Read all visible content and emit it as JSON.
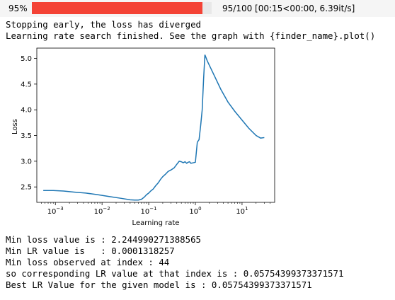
{
  "progress": {
    "percent_label": "95%",
    "fraction": 0.95,
    "stats": "95/100 [00:15<00:00, 6.39it/s]",
    "bar_color": "#f44336"
  },
  "log_lines": [
    "Stopping early, the loss has diverged",
    "Learning rate search finished. See the graph with {finder_name}.plot()"
  ],
  "chart_data": {
    "type": "line",
    "xlabel": "Learning rate",
    "ylabel": "Loss",
    "x_scale": "log",
    "xlim": [
      0.0004,
      50
    ],
    "ylim": [
      2.2,
      5.2
    ],
    "x_ticks": [
      {
        "value": 0.001,
        "base": "10",
        "exp": "−3"
      },
      {
        "value": 0.01,
        "base": "10",
        "exp": "−2"
      },
      {
        "value": 0.1,
        "base": "10",
        "exp": "−1"
      },
      {
        "value": 1,
        "base": "10",
        "exp": "0"
      },
      {
        "value": 10,
        "base": "10",
        "exp": "1"
      }
    ],
    "y_ticks": [
      "2.5",
      "3.0",
      "3.5",
      "4.0",
      "4.5",
      "5.0"
    ],
    "grid": false,
    "line_color": "#1f77b4",
    "series": [
      {
        "x": [
          0.00055,
          0.0009,
          0.0015,
          0.0025,
          0.0045,
          0.008,
          0.015,
          0.025,
          0.04,
          0.05,
          0.06,
          0.07,
          0.08,
          0.09,
          0.1,
          0.11,
          0.125,
          0.14,
          0.16,
          0.18,
          0.2,
          0.23,
          0.26,
          0.3,
          0.35,
          0.4,
          0.45,
          0.5,
          0.55,
          0.6,
          0.65,
          0.7,
          0.75,
          0.8,
          0.9,
          1.0,
          1.1,
          1.2,
          1.3,
          1.4,
          1.5,
          1.6,
          1.8,
          2.5,
          3.5,
          5,
          7,
          10,
          14,
          20,
          25,
          30
        ],
        "y": [
          2.43,
          2.43,
          2.42,
          2.4,
          2.38,
          2.35,
          2.31,
          2.28,
          2.25,
          2.245,
          2.245,
          2.26,
          2.3,
          2.35,
          2.38,
          2.42,
          2.46,
          2.52,
          2.58,
          2.65,
          2.7,
          2.75,
          2.8,
          2.83,
          2.87,
          2.94,
          3.0,
          2.99,
          2.97,
          2.99,
          2.96,
          2.98,
          2.99,
          2.96,
          2.97,
          2.98,
          3.37,
          3.42,
          3.7,
          4.0,
          4.6,
          5.07,
          4.95,
          4.68,
          4.4,
          4.15,
          3.97,
          3.8,
          3.64,
          3.5,
          3.45,
          3.46
        ]
      }
    ]
  },
  "results": [
    "Min loss value is : 2.244990271388565",
    "Min LR value is   : 0.0001318257",
    "Min loss observed at index : 44",
    "so corresponding LR value at that index is : 0.05754399373371571",
    "Best LR Value for the given model is : 0.05754399373371571"
  ]
}
